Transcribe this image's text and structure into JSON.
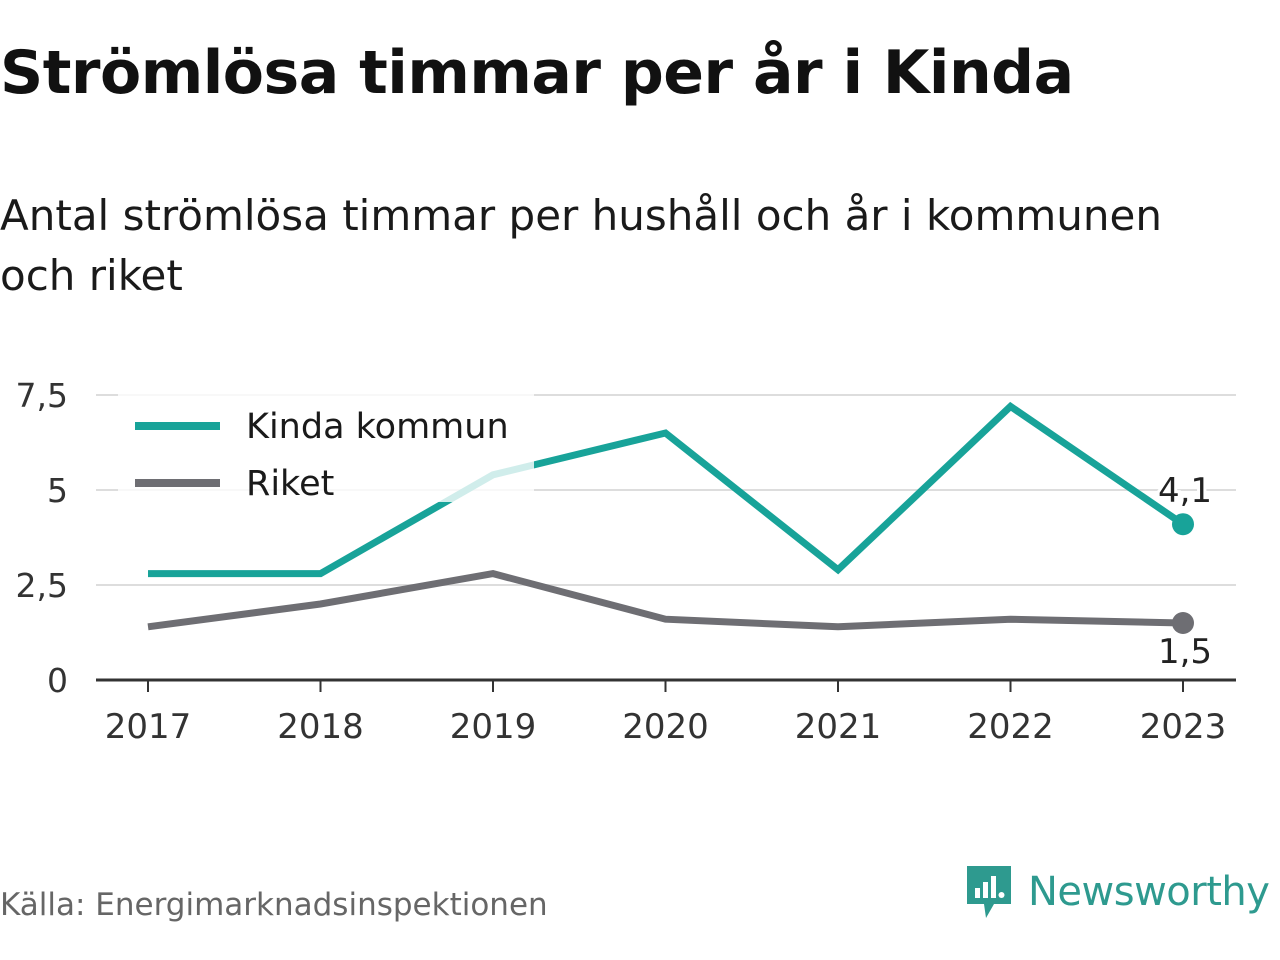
{
  "title": "Strömlösa timmar per år i Kinda",
  "subtitle": "Antal strömlösa timmar per hushåll och år i kommunen och riket",
  "source": "Källa: Energimarknadsinspektionen",
  "brand": {
    "name": "Newsworthy",
    "icon": "newsworthy-logo-icon",
    "color": "#2e9a8f"
  },
  "colors": {
    "kinda": "#18a399",
    "riket": "#6e6e73",
    "grid": "#dddddd",
    "axis": "#333333"
  },
  "chart_data": {
    "type": "line",
    "x": [
      "2017",
      "2018",
      "2019",
      "2020",
      "2021",
      "2022",
      "2023"
    ],
    "ylim": [
      0,
      7.5
    ],
    "yticks": [
      "0",
      "2,5",
      "5",
      "7,5"
    ],
    "grid": true,
    "legend_position": "top-left",
    "series": [
      {
        "name": "Kinda kommun",
        "values": [
          2.8,
          2.8,
          5.4,
          6.5,
          2.9,
          7.2,
          4.1
        ],
        "end_label": "4,1"
      },
      {
        "name": "Riket",
        "values": [
          1.4,
          2.0,
          2.8,
          1.6,
          1.4,
          1.6,
          1.5
        ],
        "end_label": "1,5"
      }
    ]
  }
}
